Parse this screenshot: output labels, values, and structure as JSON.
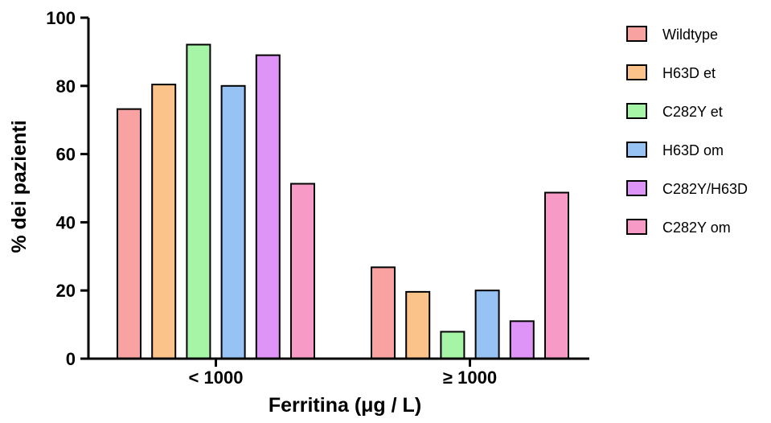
{
  "chart_data": {
    "type": "bar",
    "xlabel": "Ferritina (μg / L)",
    "ylabel": "% dei pazienti",
    "ylim": [
      0,
      100
    ],
    "yticks": [
      "0",
      "20",
      "40",
      "60",
      "80",
      "100"
    ],
    "categories": [
      "< 1000",
      "≥ 1000"
    ],
    "legend_position": "right",
    "series": [
      {
        "name": "Wildtype",
        "color": "#f9a2a2",
        "values": [
          73.2,
          26.8
        ]
      },
      {
        "name": "H63D et",
        "color": "#fbc28a",
        "values": [
          80.4,
          19.6
        ]
      },
      {
        "name": "C282Y et",
        "color": "#a6f4a6",
        "values": [
          92.1,
          7.9
        ]
      },
      {
        "name": "H63D om",
        "color": "#96c2f4",
        "values": [
          80.0,
          20.0
        ]
      },
      {
        "name": "C282Y/H63D",
        "color": "#de93f6",
        "values": [
          89.0,
          11.0
        ]
      },
      {
        "name": "C282Y om",
        "color": "#f79bc6",
        "values": [
          51.3,
          48.7
        ]
      }
    ]
  }
}
